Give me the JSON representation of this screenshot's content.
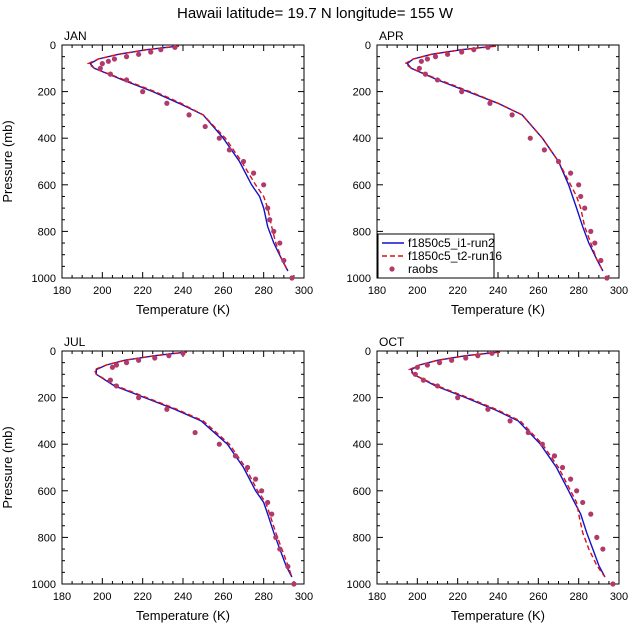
{
  "title": "Hawaii  latitude= 19.7 N longitude= 155 W",
  "colors": {
    "model1": "#1111cc",
    "model2": "#dd1111",
    "obs": "#b03a6a"
  },
  "legend": {
    "placement": "inside APR panel, lower-left",
    "entries": [
      "f1850c5_i1-run2",
      "f1850c5_t2-run16",
      "raobs"
    ]
  },
  "chart_data": [
    {
      "type": "line",
      "panel": "JAN",
      "xlabel": "Temperature (K)",
      "ylabel": "Pressure (mb)",
      "xlim": [
        180,
        300
      ],
      "ylim": [
        1000,
        0
      ],
      "y_inverted": true,
      "xticks": [
        180,
        200,
        220,
        240,
        260,
        280,
        300
      ],
      "yticks": [
        0,
        200,
        400,
        600,
        800,
        1000
      ],
      "series": [
        {
          "name": "f1850c5_i1-run2",
          "style": "solid",
          "x": [
            237,
            222,
            208,
            198,
            194,
            196,
            210,
            225,
            238,
            250,
            260,
            268,
            274,
            278,
            280,
            282,
            285,
            289,
            292
          ],
          "y": [
            5,
            20,
            40,
            60,
            80,
            100,
            150,
            200,
            250,
            300,
            400,
            500,
            600,
            650,
            700,
            780,
            850,
            920,
            970
          ]
        },
        {
          "name": "f1850c5_t2-run16",
          "style": "dashed",
          "x": [
            238,
            222,
            208,
            198,
            193,
            196,
            211,
            226,
            239,
            250,
            261,
            269,
            276,
            280,
            282,
            284,
            286,
            289,
            292
          ],
          "y": [
            5,
            20,
            40,
            60,
            80,
            100,
            150,
            200,
            250,
            300,
            400,
            500,
            600,
            650,
            700,
            780,
            850,
            920,
            970
          ]
        },
        {
          "name": "raobs",
          "style": "markers",
          "x": [
            236,
            229,
            224,
            218,
            212,
            206,
            203,
            200,
            199,
            204,
            212,
            220,
            232,
            243,
            251,
            258,
            263,
            270,
            275,
            280,
            282,
            283,
            285,
            288,
            290,
            294
          ],
          "y": [
            10,
            20,
            30,
            40,
            50,
            60,
            70,
            80,
            100,
            125,
            150,
            200,
            250,
            300,
            350,
            400,
            450,
            500,
            550,
            600,
            700,
            750,
            800,
            850,
            925,
            1000
          ]
        }
      ]
    },
    {
      "type": "line",
      "panel": "APR",
      "xlabel": "Temperature (K)",
      "ylabel": "",
      "xlim": [
        180,
        300
      ],
      "ylim": [
        1000,
        0
      ],
      "y_inverted": true,
      "xticks": [
        180,
        200,
        220,
        240,
        260,
        280,
        300
      ],
      "yticks": [
        0,
        200,
        400,
        600,
        800,
        1000
      ],
      "series": [
        {
          "name": "f1850c5_i1-run2",
          "style": "solid",
          "x": [
            238,
            222,
            207,
            198,
            195,
            197,
            210,
            225,
            240,
            252,
            262,
            270,
            275,
            277,
            279,
            282,
            285,
            289,
            292
          ],
          "y": [
            5,
            20,
            40,
            60,
            80,
            100,
            150,
            200,
            250,
            300,
            400,
            500,
            600,
            650,
            700,
            780,
            850,
            920,
            970
          ]
        },
        {
          "name": "f1850c5_t2-run16",
          "style": "dashed",
          "x": [
            239,
            222,
            207,
            198,
            194,
            197,
            211,
            226,
            240,
            252,
            262,
            270,
            276,
            279,
            281,
            283,
            286,
            289,
            292
          ],
          "y": [
            5,
            20,
            40,
            60,
            80,
            100,
            150,
            200,
            250,
            300,
            400,
            500,
            600,
            650,
            700,
            780,
            850,
            920,
            970
          ]
        },
        {
          "name": "raobs",
          "style": "markers",
          "x": [
            235,
            228,
            222,
            215,
            209,
            205,
            202,
            201,
            204,
            210,
            222,
            236,
            247,
            256,
            263,
            270,
            276,
            280,
            281,
            283,
            286,
            288,
            291,
            294
          ],
          "y": [
            10,
            20,
            30,
            40,
            50,
            60,
            70,
            100,
            125,
            150,
            200,
            250,
            300,
            400,
            450,
            500,
            550,
            600,
            650,
            700,
            800,
            850,
            925,
            1000
          ]
        }
      ]
    },
    {
      "type": "line",
      "panel": "JUL",
      "xlabel": "Temperature (K)",
      "ylabel": "Pressure (mb)",
      "xlim": [
        180,
        300
      ],
      "ylim": [
        1000,
        0
      ],
      "y_inverted": true,
      "xticks": [
        180,
        200,
        220,
        240,
        260,
        280,
        300
      ],
      "yticks": [
        0,
        200,
        400,
        600,
        800,
        1000
      ],
      "series": [
        {
          "name": "f1850c5_i1-run2",
          "style": "solid",
          "x": [
            241,
            226,
            211,
            202,
            197,
            197,
            206,
            221,
            236,
            249,
            262,
            270,
            276,
            280,
            282,
            285,
            288,
            291,
            294
          ],
          "y": [
            5,
            20,
            40,
            60,
            80,
            100,
            150,
            200,
            250,
            300,
            400,
            500,
            600,
            650,
            700,
            780,
            850,
            920,
            970
          ]
        },
        {
          "name": "f1850c5_t2-run16",
          "style": "dashed",
          "x": [
            242,
            226,
            211,
            202,
            196,
            197,
            207,
            222,
            237,
            250,
            263,
            271,
            277,
            281,
            283,
            286,
            289,
            292,
            294
          ],
          "y": [
            5,
            20,
            40,
            60,
            80,
            100,
            150,
            200,
            250,
            300,
            400,
            500,
            600,
            650,
            700,
            780,
            850,
            920,
            970
          ]
        },
        {
          "name": "raobs",
          "style": "markers",
          "x": [
            240,
            233,
            226,
            218,
            212,
            207,
            205,
            204,
            207,
            218,
            232,
            246,
            258,
            266,
            272,
            276,
            279,
            282,
            284,
            286,
            288,
            292,
            295
          ],
          "y": [
            10,
            20,
            30,
            40,
            50,
            60,
            70,
            125,
            150,
            200,
            250,
            350,
            400,
            450,
            500,
            550,
            600,
            650,
            700,
            800,
            850,
            925,
            1000
          ]
        }
      ]
    },
    {
      "type": "line",
      "panel": "OCT",
      "xlabel": "Temperature (K)",
      "ylabel": "",
      "xlim": [
        180,
        300
      ],
      "ylim": [
        1000,
        0
      ],
      "y_inverted": true,
      "xticks": [
        180,
        200,
        220,
        240,
        260,
        280,
        300
      ],
      "yticks": [
        0,
        200,
        400,
        600,
        800,
        1000
      ],
      "series": [
        {
          "name": "f1850c5_i1-run2",
          "style": "solid",
          "x": [
            240,
            224,
            210,
            201,
            197,
            198,
            209,
            224,
            238,
            250,
            261,
            269,
            275,
            278,
            281,
            284,
            287,
            290,
            293
          ],
          "y": [
            5,
            20,
            40,
            60,
            80,
            100,
            150,
            200,
            250,
            300,
            400,
            500,
            600,
            650,
            700,
            780,
            850,
            920,
            970
          ]
        },
        {
          "name": "f1850c5_t2-run16",
          "style": "dashed",
          "x": [
            241,
            224,
            210,
            201,
            196,
            198,
            210,
            225,
            239,
            251,
            262,
            270,
            276,
            279,
            280,
            282,
            285,
            289,
            293
          ],
          "y": [
            5,
            20,
            40,
            60,
            80,
            100,
            150,
            200,
            250,
            300,
            400,
            500,
            600,
            650,
            700,
            780,
            850,
            920,
            970
          ]
        },
        {
          "name": "raobs",
          "style": "markers",
          "x": [
            237,
            230,
            224,
            217,
            211,
            205,
            200,
            199,
            203,
            210,
            220,
            235,
            246,
            255,
            262,
            268,
            272,
            276,
            279,
            282,
            286,
            289,
            292,
            297
          ],
          "y": [
            10,
            20,
            30,
            40,
            50,
            60,
            70,
            100,
            125,
            150,
            200,
            250,
            300,
            350,
            400,
            450,
            500,
            550,
            600,
            650,
            700,
            800,
            850,
            1000
          ]
        }
      ]
    }
  ]
}
